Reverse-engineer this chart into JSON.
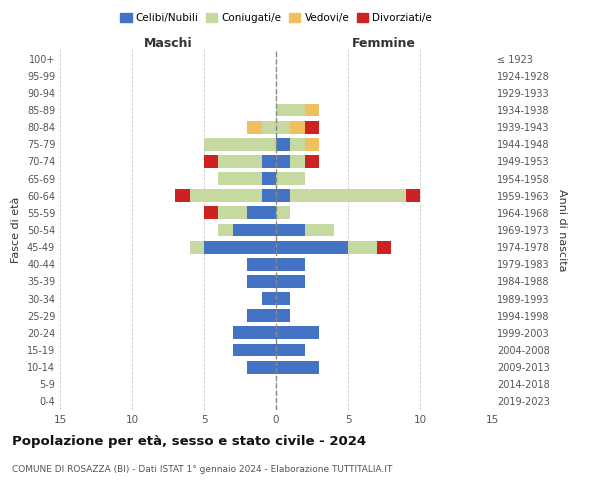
{
  "age_groups": [
    "100+",
    "95-99",
    "90-94",
    "85-89",
    "80-84",
    "75-79",
    "70-74",
    "65-69",
    "60-64",
    "55-59",
    "50-54",
    "45-49",
    "40-44",
    "35-39",
    "30-34",
    "25-29",
    "20-24",
    "15-19",
    "10-14",
    "5-9",
    "0-4"
  ],
  "birth_years": [
    "≤ 1923",
    "1924-1928",
    "1929-1933",
    "1934-1938",
    "1939-1943",
    "1944-1948",
    "1949-1953",
    "1954-1958",
    "1959-1963",
    "1964-1968",
    "1969-1973",
    "1974-1978",
    "1979-1983",
    "1984-1988",
    "1989-1993",
    "1994-1998",
    "1999-2003",
    "2004-2008",
    "2009-2013",
    "2014-2018",
    "2019-2023"
  ],
  "male": {
    "celibi": [
      0,
      0,
      0,
      0,
      0,
      0,
      1,
      1,
      1,
      2,
      3,
      5,
      2,
      2,
      1,
      2,
      3,
      3,
      2,
      0,
      0
    ],
    "coniugati": [
      0,
      0,
      0,
      0,
      1,
      5,
      3,
      3,
      5,
      2,
      1,
      1,
      0,
      0,
      0,
      0,
      0,
      0,
      0,
      0,
      0
    ],
    "vedovi": [
      0,
      0,
      0,
      0,
      1,
      0,
      0,
      0,
      0,
      0,
      0,
      0,
      0,
      0,
      0,
      0,
      0,
      0,
      0,
      0,
      0
    ],
    "divorziati": [
      0,
      0,
      0,
      0,
      0,
      0,
      1,
      0,
      1,
      1,
      0,
      0,
      0,
      0,
      0,
      0,
      0,
      0,
      0,
      0,
      0
    ]
  },
  "female": {
    "nubili": [
      0,
      0,
      0,
      0,
      0,
      1,
      1,
      0,
      1,
      0,
      2,
      5,
      2,
      2,
      1,
      1,
      3,
      2,
      3,
      0,
      0
    ],
    "coniugate": [
      0,
      0,
      0,
      2,
      1,
      1,
      1,
      2,
      8,
      1,
      2,
      2,
      0,
      0,
      0,
      0,
      0,
      0,
      0,
      0,
      0
    ],
    "vedove": [
      0,
      0,
      0,
      1,
      1,
      1,
      0,
      0,
      0,
      0,
      0,
      0,
      0,
      0,
      0,
      0,
      0,
      0,
      0,
      0,
      0
    ],
    "divorziate": [
      0,
      0,
      0,
      0,
      1,
      0,
      1,
      0,
      1,
      0,
      0,
      1,
      0,
      0,
      0,
      0,
      0,
      0,
      0,
      0,
      0
    ]
  },
  "colors": {
    "celibi_nubili": "#4472c4",
    "coniugati": "#c5d9a0",
    "vedovi": "#f0c060",
    "divorziati": "#cc2222"
  },
  "xlim": 15,
  "title": "Popolazione per età, sesso e stato civile - 2024",
  "subtitle": "COMUNE DI ROSAZZA (BI) - Dati ISTAT 1° gennaio 2024 - Elaborazione TUTTITALIA.IT",
  "ylabel_left": "Fasce di età",
  "ylabel_right": "Anni di nascita",
  "xlabel_left": "Maschi",
  "xlabel_right": "Femmine",
  "bg_color": "#ffffff",
  "grid_color": "#cccccc"
}
